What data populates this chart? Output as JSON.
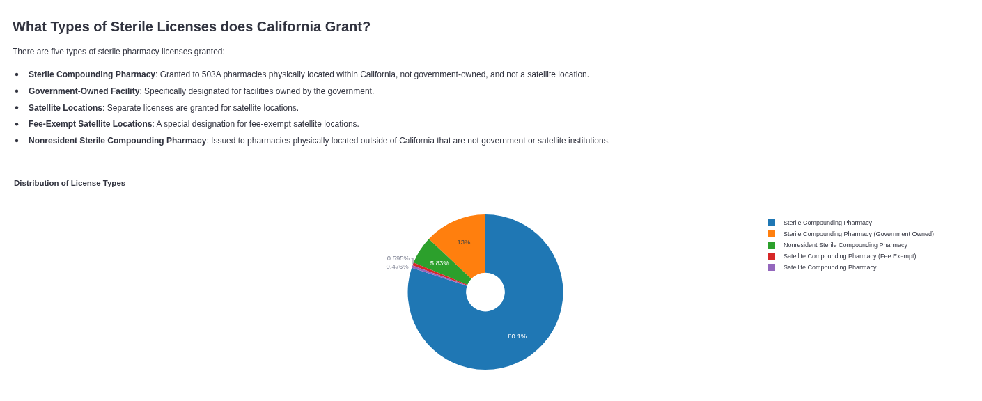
{
  "chart_data": {
    "type": "donut",
    "title": "What Types of Sterile Licenses does California Grant?",
    "subtitle": "Distribution of License Types",
    "annotations": [
      "There are five types of sterile pharmacy licenses granted:",
      "Sterile Compounding Pharmacy: Granted to 503A pharmacies physically located within California, not government-owned, and not a satellite location.",
      "Government-Owned Facility: Specifically designated for facilities owned by the government.",
      "Satellite Locations: Separate licenses are granted for satellite locations.",
      "Fee-Exempt Satellite Locations: A special designation for fee-exempt satellite locations.",
      "Nonresident Sterile Compounding Pharmacy: Issued to pharmacies physically located outside of California that are not government or satellite institutions."
    ],
    "categories": [
      "Sterile Compounding Pharmacy",
      "Sterile Compounding Pharmacy (Government Owned)",
      "Nonresident Sterile Compounding Pharmacy",
      "Satellite Compounding Pharmacy (Fee Exempt)",
      "Satellite Compounding Pharmacy"
    ],
    "values": [
      80.1,
      13,
      5.83,
      0.595,
      0.476
    ],
    "colors": [
      "#1f77b4",
      "#ff7f0e",
      "#2ca02c",
      "#d62728",
      "#9467bd"
    ],
    "value_labels": [
      "80.1%",
      "13%",
      "5.83%",
      "0.595%",
      "0.476%"
    ],
    "legend": "top right"
  }
}
